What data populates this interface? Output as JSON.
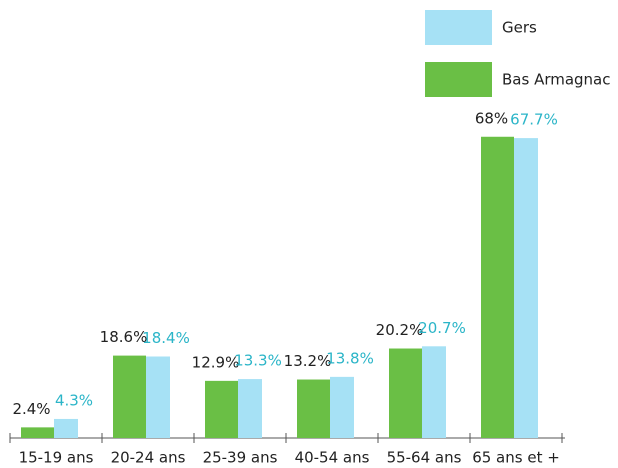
{
  "chart_data": {
    "type": "bar",
    "categories": [
      "15-19 ans",
      "20-24 ans",
      "25-39 ans",
      "40-54 ans",
      "55-64 ans",
      "65 ans et +"
    ],
    "series": [
      {
        "name": "Bas Armagnac",
        "color": "#6abf45",
        "label_color": "#222222",
        "values": [
          2.4,
          18.6,
          12.9,
          13.2,
          20.2,
          68
        ],
        "value_labels": [
          "2.4%",
          "18.6%",
          "12.9%",
          "13.2%",
          "20.2%",
          "68%"
        ]
      },
      {
        "name": "Gers",
        "color": "#a6e1f5",
        "label_color": "#2bb5c8",
        "values": [
          4.3,
          18.4,
          13.3,
          13.8,
          20.7,
          67.7
        ],
        "value_labels": [
          "4.3%",
          "18.4%",
          "13.3%",
          "13.8%",
          "20.7%",
          "67.7%"
        ]
      }
    ]
  }
}
